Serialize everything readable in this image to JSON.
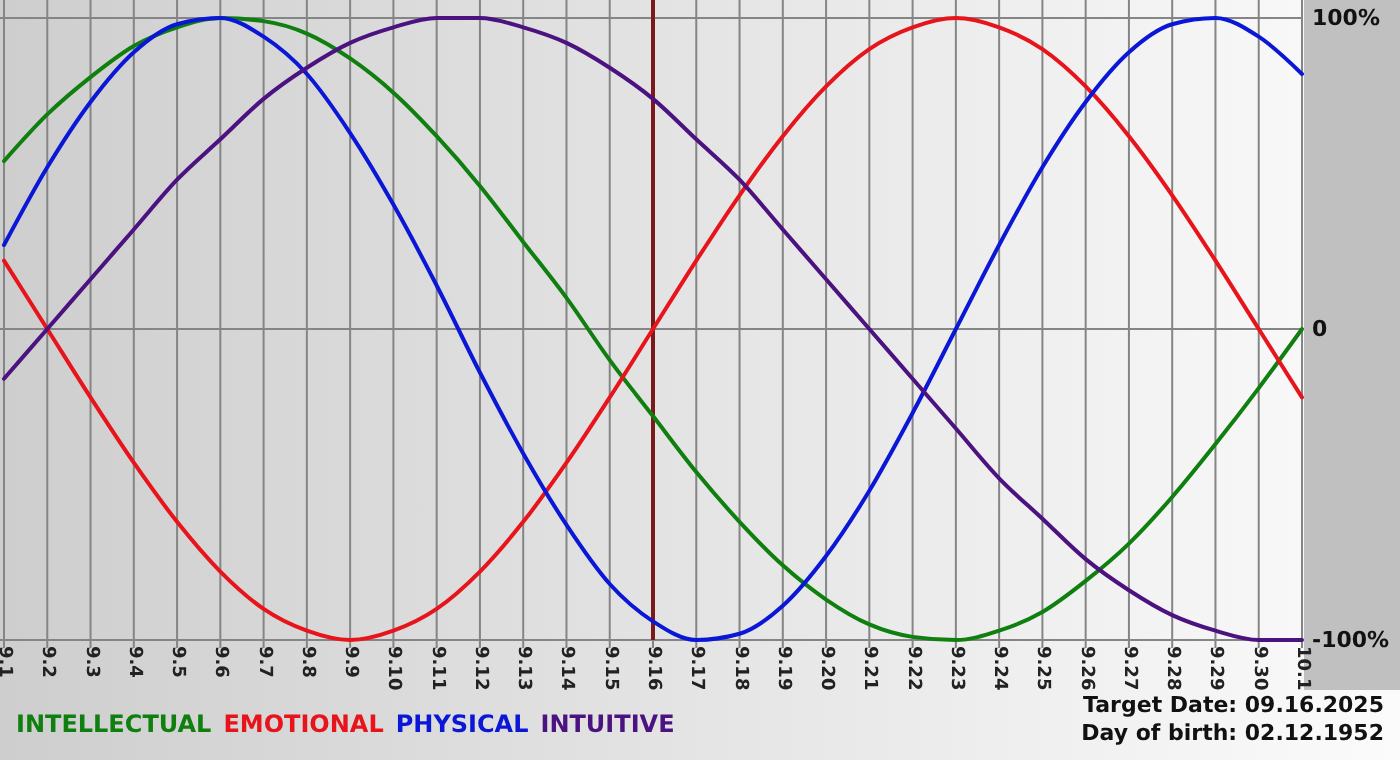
{
  "chart_data": {
    "type": "line",
    "categories": [
      "9.1",
      "9.2",
      "9.3",
      "9.4",
      "9.5",
      "9.6",
      "9.7",
      "9.8",
      "9.9",
      "9.10",
      "9.11",
      "9.12",
      "9.13",
      "9.14",
      "9.15",
      "9.16",
      "9.17",
      "9.18",
      "9.19",
      "9.20",
      "9.21",
      "9.22",
      "9.23",
      "9.24",
      "9.25",
      "9.26",
      "9.27",
      "9.28",
      "9.29",
      "9.30",
      "10.1"
    ],
    "series": [
      {
        "name": "INTELLECTUAL",
        "color": "#0f7f0f",
        "values": [
          54,
          69,
          81,
          91,
          97,
          100,
          99,
          95,
          87,
          76,
          62,
          46,
          28,
          10,
          -10,
          -28,
          -46,
          -62,
          -76,
          -87,
          -95,
          -99,
          -100,
          -97,
          -91,
          -81,
          -69,
          -54,
          -37,
          -19,
          0
        ]
      },
      {
        "name": "EMOTIONAL",
        "color": "#e8141b",
        "values": [
          22,
          0,
          -22,
          -43,
          -62,
          -78,
          -90,
          -97,
          -100,
          -97,
          -90,
          -78,
          -62,
          -43,
          -22,
          0,
          22,
          43,
          62,
          78,
          90,
          97,
          100,
          97,
          90,
          78,
          62,
          43,
          22,
          0,
          -22
        ]
      },
      {
        "name": "PHYSICAL",
        "color": "#0b17d6",
        "values": [
          27,
          52,
          73,
          89,
          98,
          100,
          94,
          82,
          63,
          40,
          14,
          -14,
          -40,
          -63,
          -82,
          -94,
          -100,
          -98,
          -89,
          -73,
          -52,
          -27,
          0,
          27,
          52,
          73,
          89,
          98,
          100,
          94,
          82
        ]
      },
      {
        "name": "INTUITIVE",
        "color": "#4b1280",
        "values": [
          -16,
          0,
          16,
          32,
          48,
          61,
          74,
          84,
          92,
          97,
          100,
          100,
          97,
          92,
          84,
          74,
          61,
          48,
          32,
          16,
          0,
          -16,
          -32,
          -48,
          -61,
          -74,
          -84,
          -92,
          -97,
          -100,
          -100
        ]
      }
    ],
    "ylim": [
      -100,
      100
    ],
    "yticks": [
      {
        "value": 100,
        "label": "100%"
      },
      0,
      {
        "value": -100,
        "label": "-100%"
      }
    ],
    "grid": true,
    "legend": "bottom left",
    "ref_lines": [
      {
        "axis": "x",
        "value": "9.16",
        "color": "#7b1a1a"
      }
    ],
    "annotations": [
      "Target Date: 09.16.2025",
      "Day of birth: 02.12.1952"
    ]
  }
}
